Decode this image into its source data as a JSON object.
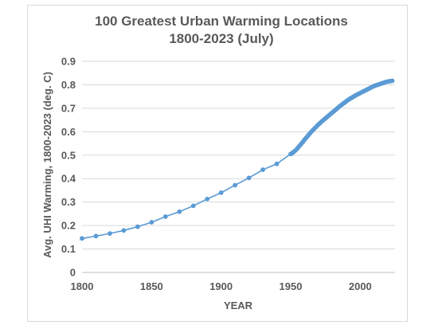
{
  "chart_data": {
    "type": "line",
    "title_lines": [
      "100 Greatest Urban Warming Locations",
      "1800-2023 (July)"
    ],
    "xlabel": "YEAR",
    "ylabel": "Avg. UHI Warming, 1800-2023 (deg. C)",
    "xlim": [
      1800,
      2025
    ],
    "ylim": [
      0,
      0.9
    ],
    "xticks": [
      1800,
      1850,
      1900,
      1950,
      2000
    ],
    "yticks": [
      0,
      0.1,
      0.2,
      0.3,
      0.4,
      0.5,
      0.6,
      0.7,
      0.8,
      0.9
    ],
    "grid": "horizontal",
    "legend": "none",
    "series": [
      {
        "color": "#5b9bd5",
        "points": [
          [
            1800,
            0.145
          ],
          [
            1810,
            0.155
          ],
          [
            1820,
            0.166
          ],
          [
            1830,
            0.179
          ],
          [
            1840,
            0.195
          ],
          [
            1850,
            0.214
          ],
          [
            1860,
            0.238
          ],
          [
            1870,
            0.259
          ],
          [
            1880,
            0.284
          ],
          [
            1890,
            0.313
          ],
          [
            1900,
            0.34
          ],
          [
            1910,
            0.372
          ],
          [
            1920,
            0.403
          ],
          [
            1930,
            0.438
          ],
          [
            1940,
            0.463
          ],
          [
            1950,
            0.505
          ],
          [
            1951,
            0.508
          ],
          [
            1952,
            0.513
          ],
          [
            1953,
            0.518
          ],
          [
            1954,
            0.523
          ],
          [
            1955,
            0.53
          ],
          [
            1956,
            0.537
          ],
          [
            1957,
            0.544
          ],
          [
            1958,
            0.551
          ],
          [
            1959,
            0.558
          ],
          [
            1960,
            0.566
          ],
          [
            1961,
            0.573
          ],
          [
            1962,
            0.58
          ],
          [
            1963,
            0.587
          ],
          [
            1964,
            0.594
          ],
          [
            1965,
            0.601
          ],
          [
            1966,
            0.607
          ],
          [
            1967,
            0.613
          ],
          [
            1968,
            0.619
          ],
          [
            1969,
            0.625
          ],
          [
            1970,
            0.631
          ],
          [
            1971,
            0.636
          ],
          [
            1972,
            0.642
          ],
          [
            1973,
            0.647
          ],
          [
            1974,
            0.652
          ],
          [
            1975,
            0.657
          ],
          [
            1976,
            0.662
          ],
          [
            1977,
            0.667
          ],
          [
            1978,
            0.672
          ],
          [
            1979,
            0.677
          ],
          [
            1980,
            0.682
          ],
          [
            1981,
            0.687
          ],
          [
            1982,
            0.692
          ],
          [
            1983,
            0.697
          ],
          [
            1984,
            0.702
          ],
          [
            1985,
            0.707
          ],
          [
            1986,
            0.712
          ],
          [
            1987,
            0.716
          ],
          [
            1988,
            0.721
          ],
          [
            1989,
            0.725
          ],
          [
            1990,
            0.73
          ],
          [
            1991,
            0.734
          ],
          [
            1992,
            0.738
          ],
          [
            1993,
            0.742
          ],
          [
            1994,
            0.745
          ],
          [
            1995,
            0.749
          ],
          [
            1996,
            0.752
          ],
          [
            1997,
            0.756
          ],
          [
            1998,
            0.759
          ],
          [
            1999,
            0.762
          ],
          [
            2000,
            0.765
          ],
          [
            2001,
            0.768
          ],
          [
            2002,
            0.771
          ],
          [
            2003,
            0.774
          ],
          [
            2004,
            0.777
          ],
          [
            2005,
            0.78
          ],
          [
            2006,
            0.783
          ],
          [
            2007,
            0.786
          ],
          [
            2008,
            0.789
          ],
          [
            2009,
            0.792
          ],
          [
            2010,
            0.795
          ],
          [
            2011,
            0.797
          ],
          [
            2012,
            0.799
          ],
          [
            2013,
            0.801
          ],
          [
            2014,
            0.803
          ],
          [
            2015,
            0.805
          ],
          [
            2016,
            0.807
          ],
          [
            2017,
            0.809
          ],
          [
            2018,
            0.811
          ],
          [
            2019,
            0.813
          ],
          [
            2020,
            0.814
          ],
          [
            2021,
            0.815
          ],
          [
            2022,
            0.816
          ],
          [
            2023,
            0.817
          ]
        ]
      }
    ]
  }
}
